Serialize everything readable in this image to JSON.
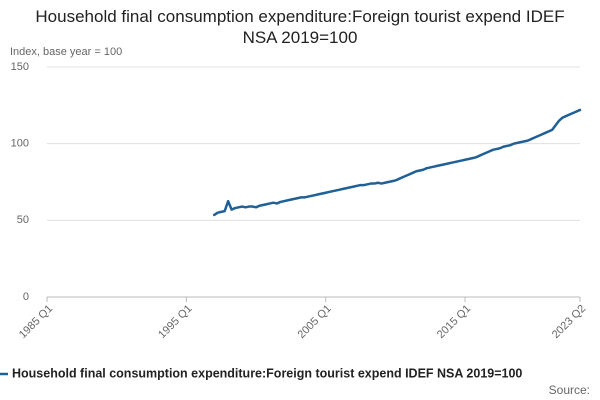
{
  "chart_data": {
    "type": "line",
    "title": "Household final consumption expenditure:Foreign tourist expend IDEF NSA 2019=100",
    "y_label": "Index, base year = 100",
    "source": "Source:",
    "x": [
      1997,
      1997.25,
      1997.5,
      1997.75,
      1998,
      1998.25,
      1998.5,
      1998.75,
      1999,
      1999.25,
      1999.5,
      1999.75,
      2000,
      2000.25,
      2000.5,
      2000.75,
      2001,
      2001.25,
      2001.5,
      2001.75,
      2002,
      2002.25,
      2002.5,
      2002.75,
      2003,
      2003.25,
      2003.5,
      2003.75,
      2004,
      2004.25,
      2004.5,
      2004.75,
      2005,
      2005.25,
      2005.5,
      2005.75,
      2006,
      2006.25,
      2006.5,
      2006.75,
      2007,
      2007.25,
      2007.5,
      2007.75,
      2008,
      2008.25,
      2008.5,
      2008.75,
      2009,
      2009.25,
      2009.5,
      2009.75,
      2010,
      2010.25,
      2010.5,
      2010.75,
      2011,
      2011.25,
      2011.5,
      2011.75,
      2012,
      2012.25,
      2012.5,
      2012.75,
      2013,
      2013.25,
      2013.5,
      2013.75,
      2014,
      2014.25,
      2014.5,
      2014.75,
      2015,
      2015.25,
      2015.5,
      2015.75,
      2016,
      2016.25,
      2016.5,
      2016.75,
      2017,
      2017.25,
      2017.5,
      2017.75,
      2018,
      2018.25,
      2018.5,
      2018.75,
      2019,
      2019.25,
      2019.5,
      2019.75,
      2020,
      2020.25,
      2020.5,
      2020.75,
      2021,
      2021.25,
      2021.5,
      2021.75,
      2022,
      2022.25,
      2022.5,
      2022.75,
      2023,
      2023.25
    ],
    "series": [
      {
        "name": "Household final consumption expenditure:Foreign tourist expend IDEF NSA 2019=100",
        "color": "#206095",
        "values": [
          53.5,
          55,
          55.5,
          56,
          62.5,
          57,
          58,
          58.5,
          59,
          58.5,
          59,
          59,
          58.5,
          59.5,
          60,
          60.5,
          61,
          61.5,
          61,
          62,
          62.5,
          63,
          63.5,
          64,
          64.5,
          65,
          65,
          65.5,
          66,
          66.5,
          67,
          67.5,
          68,
          68.5,
          69,
          69.5,
          70,
          70.5,
          71,
          71.5,
          72,
          72.5,
          73,
          73,
          73.5,
          74,
          74,
          74.5,
          74,
          74.5,
          75,
          75.5,
          76,
          77,
          78,
          79,
          80,
          81,
          82,
          82.5,
          83,
          84,
          84.5,
          85,
          85.5,
          86,
          86.5,
          87,
          87.5,
          88,
          88.5,
          89,
          89.5,
          90,
          90.5,
          91,
          92,
          93,
          94,
          95,
          96,
          96.5,
          97,
          98,
          98.5,
          99,
          100,
          100.5,
          101,
          101.5,
          102,
          103,
          104,
          105,
          106,
          107,
          108,
          109,
          112,
          115,
          117,
          118,
          119,
          120,
          121,
          122
        ]
      }
    ],
    "xlim": [
      1985,
      2023.25
    ],
    "xticks": [
      {
        "value": 1985,
        "label": "1985 Q1"
      },
      {
        "value": 1995,
        "label": "1995 Q1"
      },
      {
        "value": 2005,
        "label": "2005 Q1"
      },
      {
        "value": 2015,
        "label": "2015 Q1"
      },
      {
        "value": 2023.25,
        "label": "2023 Q2"
      }
    ],
    "ylim": [
      0,
      150
    ],
    "yticks": [
      0,
      50,
      100,
      150
    ],
    "grid": true
  }
}
